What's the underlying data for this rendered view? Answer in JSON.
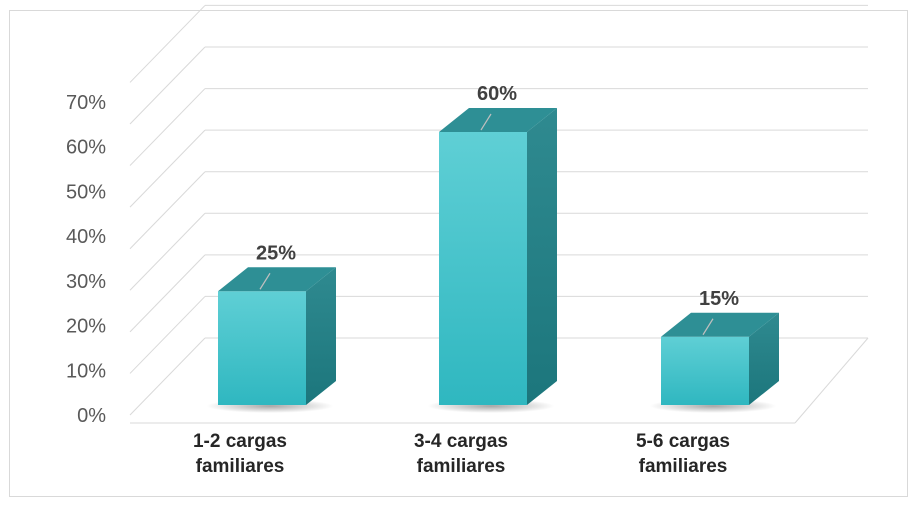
{
  "chart_data": {
    "type": "bar",
    "title": "",
    "xlabel": "",
    "ylabel": "",
    "ylim": [
      0,
      70
    ],
    "yticks": [
      "0%",
      "10%",
      "20%",
      "30%",
      "40%",
      "50%",
      "60%",
      "70%"
    ],
    "categories": [
      "1-2 cargas familiares",
      "3-4 cargas familiares",
      "5-6 cargas familiares"
    ],
    "category_lines": [
      [
        "1-2 cargas",
        "familiares"
      ],
      [
        "3-4 cargas",
        "familiares"
      ],
      [
        "5-6 cargas",
        "familiares"
      ]
    ],
    "values": [
      25,
      60,
      15
    ],
    "data_labels": [
      "25%",
      "60%",
      "15%"
    ],
    "grid": true,
    "legend": "none",
    "style": "3d-column",
    "colors": {
      "front": "#3fc1c9",
      "side": "#1f7f86",
      "top": "#2e8f95",
      "grid": "#d9d9d9"
    }
  }
}
